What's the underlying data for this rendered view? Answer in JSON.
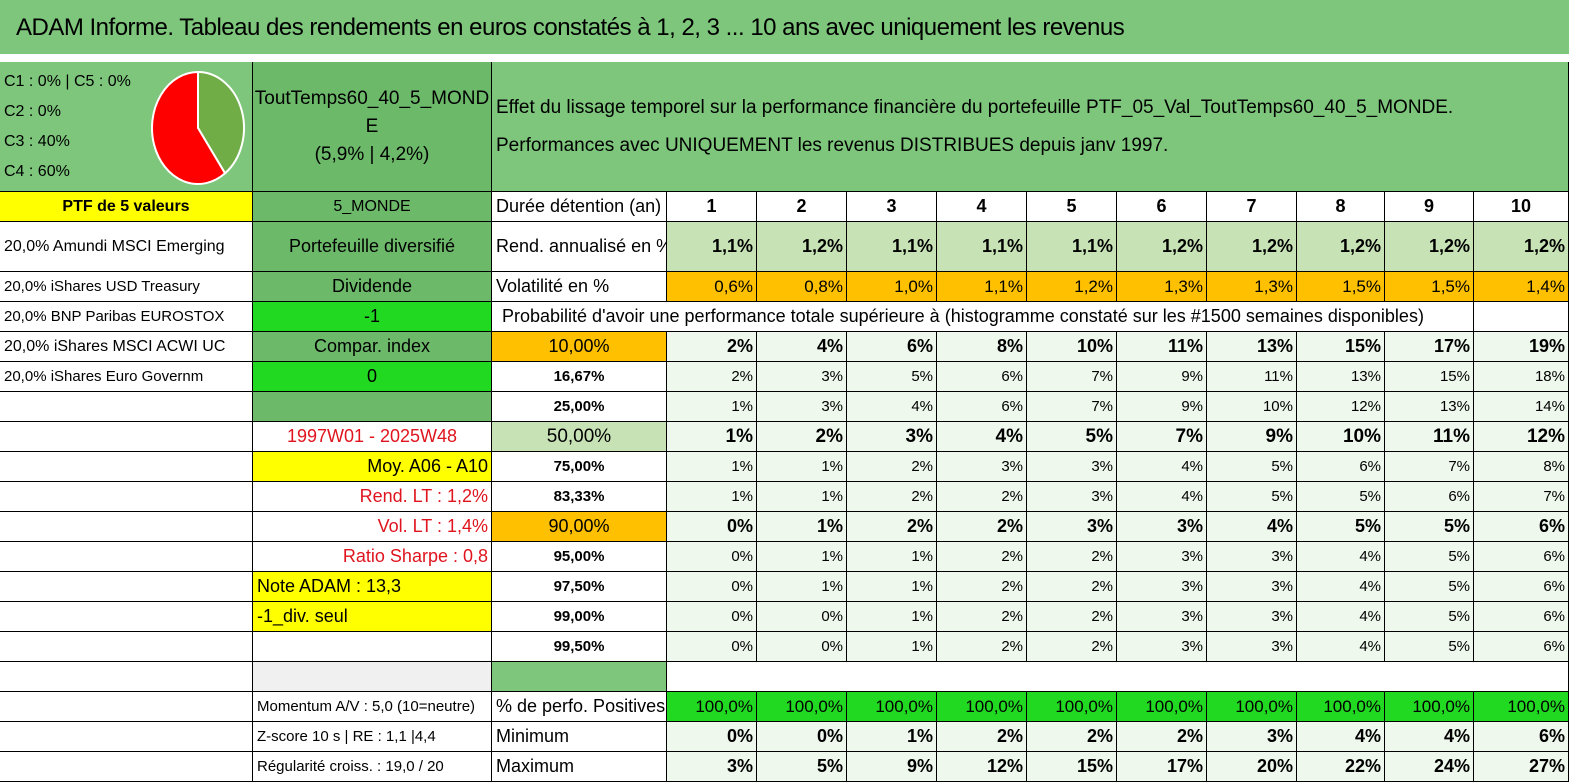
{
  "header": {
    "title": "ADAM Informe. Tableau des rendements en euros constatés à 1, 2, 3 ... 10 ans avec uniquement les revenus"
  },
  "allocation": {
    "lines": [
      "C1 : 0% | C5 : 0%",
      "C2 : 0%",
      "C3 : 40%",
      "C4 : 60%"
    ],
    "pie": {
      "colors": [
        "#70ad47",
        "#ff0000"
      ],
      "values": [
        40,
        60
      ]
    }
  },
  "portfolio": {
    "name_line1": "ToutTemps60_40_5_MOND",
    "name_line2": "E",
    "name_line3": "(5,9% | 4,2%)",
    "description": "Effet du lissage temporel sur la performance financière du portefeuille PTF_05_Val_ToutTemps60_40_5_MONDE. Performances avec UNIQUEMENT les revenus DISTRIBUES depuis janv 1997."
  },
  "left": {
    "ptf_label": "PTF de 5 valeurs",
    "holdings": [
      "20,0% Amundi MSCI Emerging",
      "20,0% iShares USD Treasury",
      "20,0% BNP Paribas EUROSTOX",
      "20,0% iShares MSCI ACWI UC",
      "20,0% iShares Euro Governm"
    ]
  },
  "mid": {
    "region": "5_MONDE",
    "type": "Portefeuille diversifié",
    "dividend": "Dividende",
    "val1": "-1",
    "compar": "Compar. index",
    "val2": "0",
    "period": "1997W01 - 2025W48",
    "moy": "Moy. A06 - A10",
    "rend": "Rend. LT : 1,2%",
    "vol": "Vol. LT : 1,4%",
    "sharpe": "Ratio Sharpe : 0,8",
    "note": "Note ADAM : 13,3",
    "div_seul": "-1_div. seul",
    "momentum": "Momentum A/V : 5,0 (10=neutre)",
    "zscore": "Z-score 10 s | RE : 1,1 |4,4",
    "regularite": "Régularité croiss. : 19,0 / 20"
  },
  "table": {
    "duree_label": "Durée détention (an)",
    "years": [
      "1",
      "2",
      "3",
      "4",
      "5",
      "6",
      "7",
      "8",
      "9",
      "10"
    ],
    "rend_label": "Rend. annualisé en %",
    "rend": [
      "1,1%",
      "1,2%",
      "1,1%",
      "1,1%",
      "1,1%",
      "1,2%",
      "1,2%",
      "1,2%",
      "1,2%",
      "1,2%"
    ],
    "vol_label": "Volatilité en %",
    "vol": [
      "0,6%",
      "0,8%",
      "1,0%",
      "1,1%",
      "1,2%",
      "1,3%",
      "1,3%",
      "1,5%",
      "1,5%",
      "1,4%"
    ],
    "prob_label": "Probabilité d'avoir une performance totale supérieure à (histogramme constaté sur les #1500 semaines disponibles)",
    "prob_rows": [
      {
        "p": "10,00%",
        "v": [
          "2%",
          "4%",
          "6%",
          "8%",
          "10%",
          "11%",
          "13%",
          "15%",
          "17%",
          "19%"
        ]
      },
      {
        "p": "16,67%",
        "v": [
          "2%",
          "3%",
          "5%",
          "6%",
          "7%",
          "9%",
          "11%",
          "13%",
          "15%",
          "18%"
        ]
      },
      {
        "p": "25,00%",
        "v": [
          "1%",
          "3%",
          "4%",
          "6%",
          "7%",
          "9%",
          "10%",
          "12%",
          "13%",
          "14%"
        ]
      },
      {
        "p": "50,00%",
        "v": [
          "1%",
          "2%",
          "3%",
          "4%",
          "5%",
          "7%",
          "9%",
          "10%",
          "11%",
          "12%"
        ]
      },
      {
        "p": "75,00%",
        "v": [
          "1%",
          "1%",
          "2%",
          "3%",
          "3%",
          "4%",
          "5%",
          "6%",
          "7%",
          "8%"
        ]
      },
      {
        "p": "83,33%",
        "v": [
          "1%",
          "1%",
          "2%",
          "2%",
          "3%",
          "4%",
          "5%",
          "5%",
          "6%",
          "7%"
        ]
      },
      {
        "p": "90,00%",
        "v": [
          "0%",
          "1%",
          "2%",
          "2%",
          "3%",
          "3%",
          "4%",
          "5%",
          "5%",
          "6%"
        ]
      },
      {
        "p": "95,00%",
        "v": [
          "0%",
          "1%",
          "1%",
          "2%",
          "2%",
          "3%",
          "3%",
          "4%",
          "5%",
          "6%"
        ]
      },
      {
        "p": "97,50%",
        "v": [
          "0%",
          "1%",
          "1%",
          "2%",
          "2%",
          "3%",
          "3%",
          "4%",
          "5%",
          "6%"
        ]
      },
      {
        "p": "99,00%",
        "v": [
          "0%",
          "0%",
          "1%",
          "2%",
          "2%",
          "3%",
          "3%",
          "4%",
          "5%",
          "6%"
        ]
      },
      {
        "p": "99,50%",
        "v": [
          "0%",
          "0%",
          "1%",
          "2%",
          "2%",
          "3%",
          "3%",
          "4%",
          "5%",
          "6%"
        ]
      }
    ],
    "pos_label": "% de perfo. Positives",
    "pos": [
      "100,0%",
      "100,0%",
      "100,0%",
      "100,0%",
      "100,0%",
      "100,0%",
      "100,0%",
      "100,0%",
      "100,0%",
      "100,0%"
    ],
    "min_label": "Minimum",
    "min": [
      "0%",
      "0%",
      "1%",
      "2%",
      "2%",
      "2%",
      "3%",
      "4%",
      "4%",
      "6%"
    ],
    "max_label": "Maximum",
    "max": [
      "3%",
      "5%",
      "9%",
      "12%",
      "15%",
      "17%",
      "20%",
      "22%",
      "24%",
      "27%"
    ]
  }
}
